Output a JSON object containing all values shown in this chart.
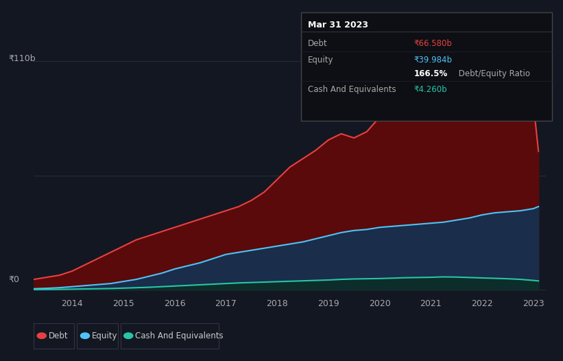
{
  "bg_color": "#131722",
  "plot_bg_color": "#131722",
  "grid_color": "#2a2e39",
  "title_box": {
    "date": "Mar 31 2023",
    "debt_label": "Debt",
    "debt_value": "₹66.580b",
    "equity_label": "Equity",
    "equity_value": "₹39.984b",
    "ratio_bold": "166.5%",
    "ratio_rest": " Debt/Equity Ratio",
    "cash_label": "Cash And Equivalents",
    "cash_value": "₹4.260b"
  },
  "debt_color": "#e84040",
  "equity_color": "#4fc3f7",
  "cash_color": "#26c6a6",
  "debt_fill": "#5a0a0a",
  "equity_fill": "#1a2d4a",
  "cash_fill": "#0d2d2a",
  "years": [
    2013.25,
    2013.5,
    2013.75,
    2014.0,
    2014.25,
    2014.5,
    2014.75,
    2015.0,
    2015.25,
    2015.5,
    2015.75,
    2016.0,
    2016.25,
    2016.5,
    2016.75,
    2017.0,
    2017.25,
    2017.5,
    2017.75,
    2018.0,
    2018.25,
    2018.5,
    2018.75,
    2019.0,
    2019.25,
    2019.5,
    2019.75,
    2020.0,
    2020.25,
    2020.5,
    2020.75,
    2021.0,
    2021.25,
    2021.5,
    2021.75,
    2022.0,
    2022.25,
    2022.5,
    2022.75,
    2023.0,
    2023.1
  ],
  "debt": [
    5,
    6,
    7,
    9,
    12,
    15,
    18,
    21,
    24,
    26,
    28,
    30,
    32,
    34,
    36,
    38,
    40,
    43,
    47,
    53,
    59,
    63,
    67,
    72,
    75,
    73,
    76,
    83,
    88,
    85,
    92,
    105,
    109,
    106,
    100,
    95,
    96,
    98,
    100,
    90,
    66.58
  ],
  "equity": [
    0.5,
    0.7,
    1.0,
    1.5,
    2,
    2.5,
    3,
    4,
    5,
    6.5,
    8,
    10,
    11.5,
    13,
    15,
    17,
    18,
    19,
    20,
    21,
    22,
    23,
    24.5,
    26,
    27.5,
    28.5,
    29,
    30,
    30.5,
    31,
    31.5,
    32,
    32.5,
    33.5,
    34.5,
    36,
    37,
    37.5,
    38,
    39,
    39.984
  ],
  "cash": [
    0.1,
    0.15,
    0.2,
    0.3,
    0.4,
    0.5,
    0.6,
    0.8,
    1.0,
    1.2,
    1.5,
    1.8,
    2.1,
    2.4,
    2.7,
    3.0,
    3.3,
    3.5,
    3.7,
    3.9,
    4.1,
    4.3,
    4.5,
    4.7,
    5.0,
    5.2,
    5.3,
    5.4,
    5.6,
    5.8,
    5.9,
    6.0,
    6.2,
    6.1,
    5.9,
    5.7,
    5.5,
    5.3,
    5.0,
    4.5,
    4.26
  ],
  "xtick_years": [
    2014,
    2015,
    2016,
    2017,
    2018,
    2019,
    2020,
    2021,
    2022,
    2023
  ],
  "legend_items": [
    {
      "label": "Debt",
      "color": "#e84040"
    },
    {
      "label": "Equity",
      "color": "#4fc3f7"
    },
    {
      "label": "Cash And Equivalents",
      "color": "#26c6a6"
    }
  ]
}
